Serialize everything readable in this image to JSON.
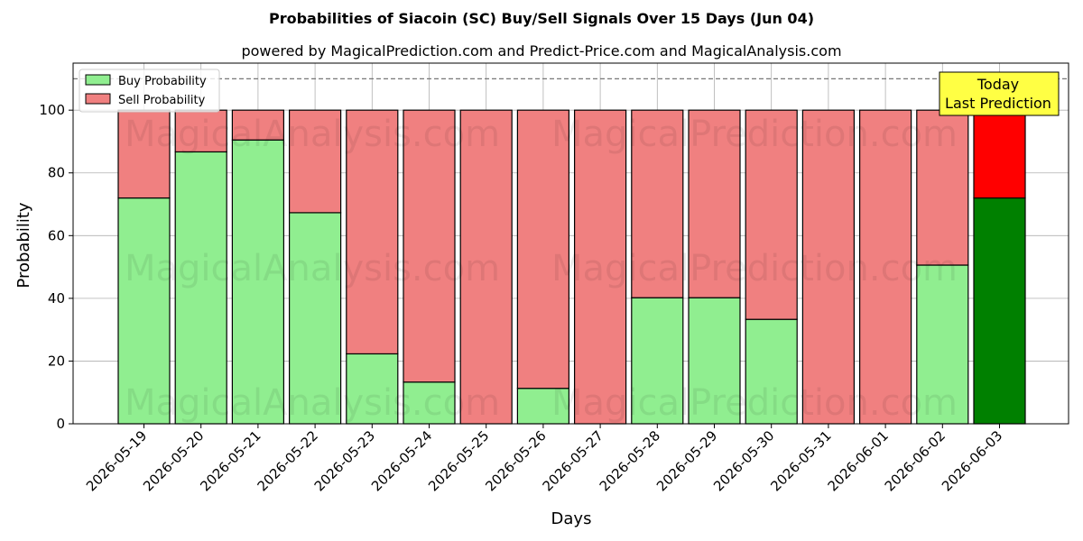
{
  "chart_data": {
    "type": "bar",
    "stacked": true,
    "title": "Probabilities of Siacoin (SC) Buy/Sell Signals Over 15 Days (Jun 04)",
    "subtitle": "powered by MagicalPrediction.com and Predict-Price.com and MagicalAnalysis.com",
    "xlabel": "Days",
    "ylabel": "Probability",
    "ylim": [
      0,
      115
    ],
    "yticks": [
      0,
      20,
      40,
      60,
      80,
      100
    ],
    "reference_line": 110,
    "grid": true,
    "legend_position": "top-left",
    "categories": [
      "2026-05-19",
      "2026-05-20",
      "2026-05-21",
      "2026-05-22",
      "2026-05-23",
      "2026-05-24",
      "2026-05-25",
      "2026-05-26",
      "2026-05-27",
      "2026-05-28",
      "2026-05-29",
      "2026-05-30",
      "2026-05-31",
      "2026-06-01",
      "2026-06-02",
      "2026-06-03"
    ],
    "series": [
      {
        "name": "Buy Probability",
        "color": "#90ee90",
        "values": [
          72,
          86.7,
          90.5,
          67.3,
          22.3,
          13.3,
          0,
          11.3,
          0,
          40.2,
          40.2,
          33.3,
          0,
          0,
          50.6,
          72
        ]
      },
      {
        "name": "Sell Probability",
        "color": "#f08080",
        "values": [
          28,
          13.3,
          9.5,
          32.7,
          77.7,
          86.7,
          100,
          88.7,
          100,
          59.8,
          59.8,
          66.7,
          100,
          100,
          49.4,
          28
        ]
      }
    ],
    "highlight": {
      "index": 15,
      "buy_color": "#008000",
      "sell_color": "#ff0000"
    },
    "annotation": {
      "line1": "Today",
      "line2": "Last Prediction",
      "background": "#ffff44"
    },
    "watermarks": [
      "MagicalAnalysis.com",
      "MagicalPrediction.com"
    ]
  }
}
